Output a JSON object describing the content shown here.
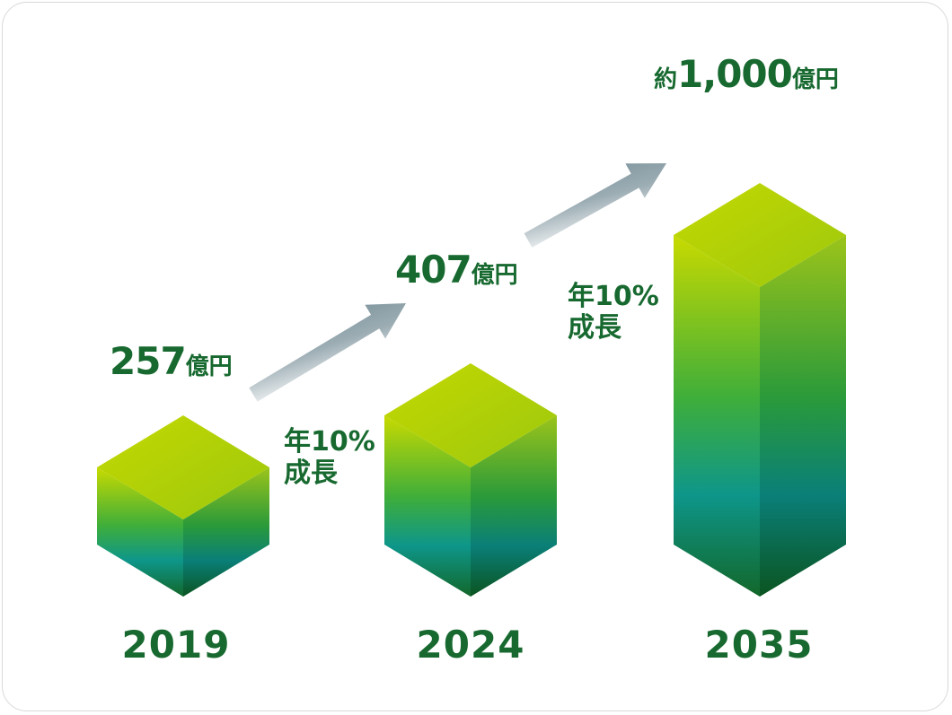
{
  "chart_data": {
    "type": "bar",
    "categories": [
      "2019",
      "2024",
      "2035"
    ],
    "values": [
      257,
      407,
      1000
    ],
    "value_labels": [
      {
        "prefix": "",
        "number": "257",
        "unit": "億円"
      },
      {
        "prefix": "",
        "number": "407",
        "unit": "億円"
      },
      {
        "prefix": "約",
        "number": "1,000",
        "unit": "億円"
      }
    ],
    "annotations": [
      {
        "line1": "年10%",
        "line2": "成長"
      },
      {
        "line1": "年10%",
        "line2": "成長"
      }
    ],
    "colors": {
      "text": "#17692f",
      "bar_top": "#c4d600",
      "bar_mid": "#0d9688",
      "bar_bottom": "#1a6b2a",
      "arrow": "#8a9ea6"
    }
  }
}
